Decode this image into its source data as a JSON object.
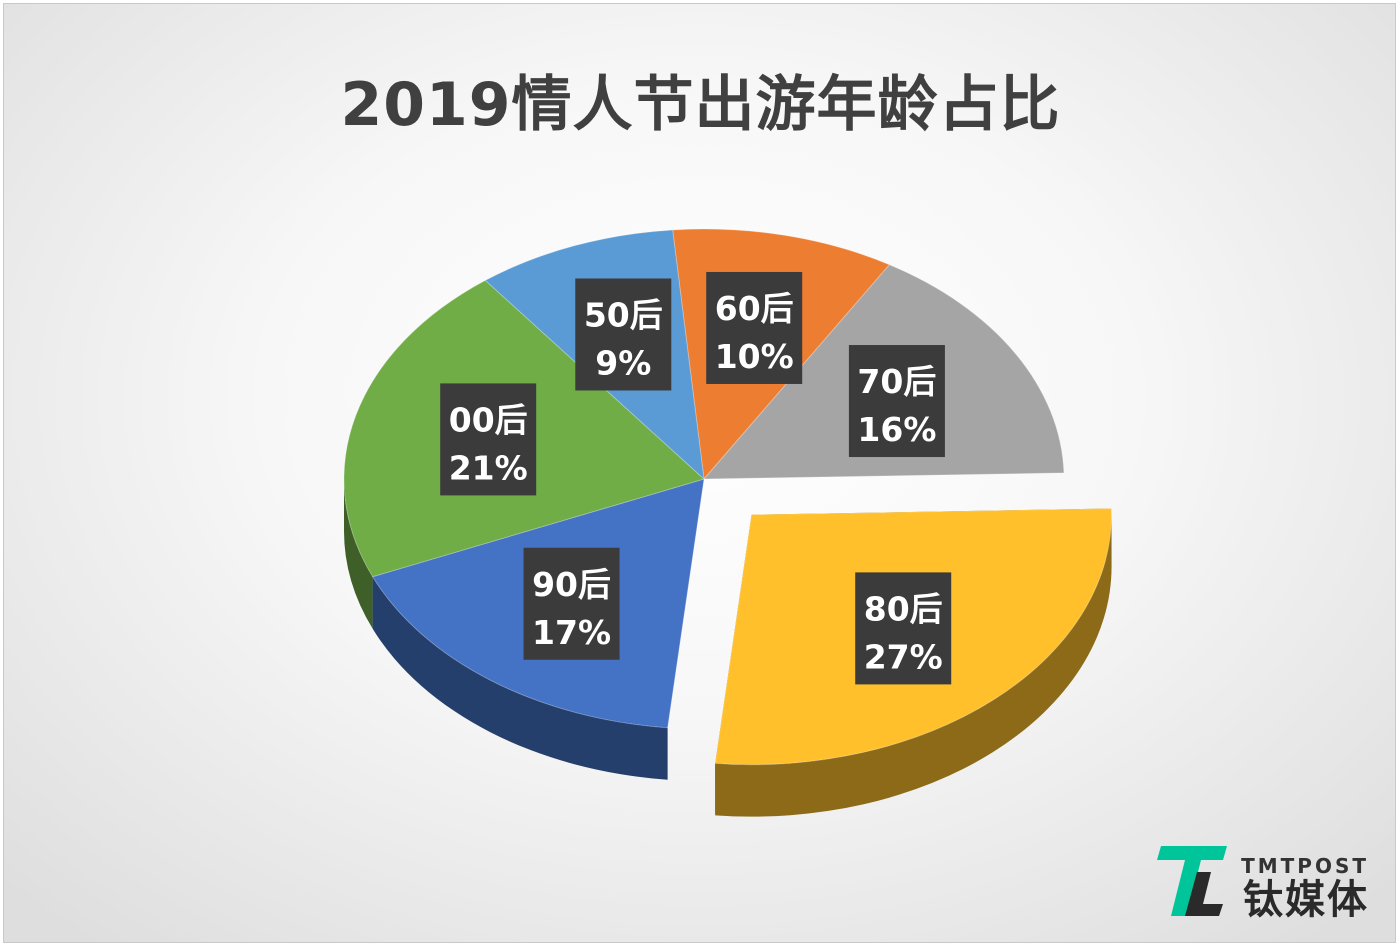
{
  "chart_data": {
    "type": "pie",
    "title": "2019情人节出游年龄占比",
    "three_d": true,
    "exploded_category": "80后",
    "slices": [
      {
        "label": "60后",
        "value": 10,
        "value_label": "10%",
        "color": "#ED7D31"
      },
      {
        "label": "70后",
        "value": 16,
        "value_label": "16%",
        "color": "#A5A5A5"
      },
      {
        "label": "80后",
        "value": 27,
        "value_label": "27%",
        "color": "#FFC02B"
      },
      {
        "label": "90后",
        "value": 17,
        "value_label": "17%",
        "color": "#4472C4"
      },
      {
        "label": "00后",
        "value": 21,
        "value_label": "21%",
        "color": "#70AD47"
      },
      {
        "label": "50后",
        "value": 9,
        "value_label": "9%",
        "color": "#5B9BD5"
      }
    ]
  },
  "watermark": {
    "brand_en": "TMTPOST",
    "brand_cn": "钛媒体",
    "accent_color": "#00C49A"
  }
}
